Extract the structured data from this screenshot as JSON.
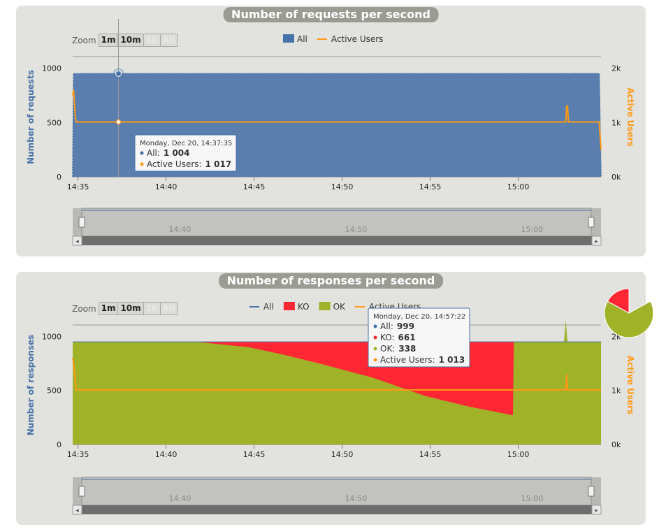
{
  "zoom": {
    "label": "Zoom",
    "buttons": [
      "1m",
      "10m",
      "1h",
      "All"
    ]
  },
  "colors": {
    "all": "#4572a7",
    "all_fill": "#5a7eae",
    "active": "#ff9916",
    "ko": "#ff2733",
    "ok": "#a0b228"
  },
  "chart_data": [
    {
      "type": "area",
      "title": "Number of requests per second",
      "ylabel": "Number of requests",
      "y2label": "Active Users",
      "ylim": [
        0,
        1100
      ],
      "y2lim": [
        0,
        2200
      ],
      "yticks": [
        "0",
        "500",
        "1000"
      ],
      "y2ticks": [
        "0k",
        "1k",
        "2k"
      ],
      "xticks": [
        "14:35",
        "14:40",
        "14:45",
        "14:50",
        "14:55",
        "15:00"
      ],
      "legend": [
        "All",
        "Active Users"
      ],
      "series": [
        {
          "name": "All",
          "x_minutes": [
            0,
            0.05,
            29.9,
            30.0
          ],
          "values": [
            0,
            950,
            950,
            0
          ]
        },
        {
          "name": "Active Users",
          "x_minutes": [
            0,
            0.05,
            0.15,
            0.2,
            28,
            28.05,
            28.1,
            28.15,
            29.9,
            30.0
          ],
          "values": [
            1500,
            1600,
            1100,
            1010,
            1010,
            1300,
            1300,
            1010,
            1010,
            500
          ]
        }
      ],
      "tooltip": {
        "time": "Monday, Dec 20, 14:37:35",
        "rows": [
          {
            "label": "All",
            "value": "1 004"
          },
          {
            "label": "Active Users",
            "value": "1 017"
          }
        ]
      },
      "navigator_ticks": [
        "14:40",
        "14:50",
        "15:00"
      ]
    },
    {
      "type": "area",
      "title": "Number of responses per second",
      "ylabel": "Number of responses",
      "y2label": "Active Users",
      "ylim": [
        0,
        1100
      ],
      "y2lim": [
        0,
        2200
      ],
      "yticks": [
        "0",
        "500",
        "1000"
      ],
      "y2ticks": [
        "0k",
        "1k",
        "2k"
      ],
      "xticks": [
        "14:35",
        "14:40",
        "14:45",
        "14:50",
        "14:55",
        "15:00"
      ],
      "legend": [
        "All",
        "KO",
        "OK",
        "Active Users"
      ],
      "series": [
        {
          "name": "All",
          "x_minutes": [
            0,
            0.05,
            30.0
          ],
          "values": [
            950,
            950,
            950
          ]
        },
        {
          "name": "KO",
          "x_minutes": [
            7,
            10,
            14,
            17,
            20,
            22.5,
            25,
            25.05
          ],
          "values": [
            0,
            50,
            200,
            330,
            500,
            600,
            680,
            0
          ]
        },
        {
          "name": "OK",
          "x_minutes": [
            0,
            7,
            10,
            12,
            14,
            17,
            20,
            22.5,
            25,
            25.05,
            27.9,
            28.0,
            28.1,
            30.0
          ],
          "values": [
            950,
            950,
            900,
            830,
            750,
            620,
            450,
            350,
            270,
            950,
            950,
            1150,
            950,
            950
          ]
        },
        {
          "name": "Active Users",
          "x_minutes": [
            0,
            0.05,
            0.2,
            28,
            28.05,
            28.1,
            30.0
          ],
          "values": [
            1600,
            1500,
            1010,
            1010,
            1300,
            1010,
            1010
          ]
        }
      ],
      "tooltip": {
        "time": "Monday, Dec 20, 14:57:22",
        "rows": [
          {
            "label": "All",
            "value": "999"
          },
          {
            "label": "KO",
            "value": "661"
          },
          {
            "label": "OK",
            "value": "338"
          },
          {
            "label": "Active Users",
            "value": "1 013"
          }
        ]
      },
      "navigator_ticks": [
        "14:40",
        "14:50",
        "15:00"
      ]
    },
    {
      "type": "pie",
      "slices": [
        {
          "name": "KO",
          "value": 17
        },
        {
          "name": "OK",
          "value": 83
        }
      ]
    }
  ]
}
